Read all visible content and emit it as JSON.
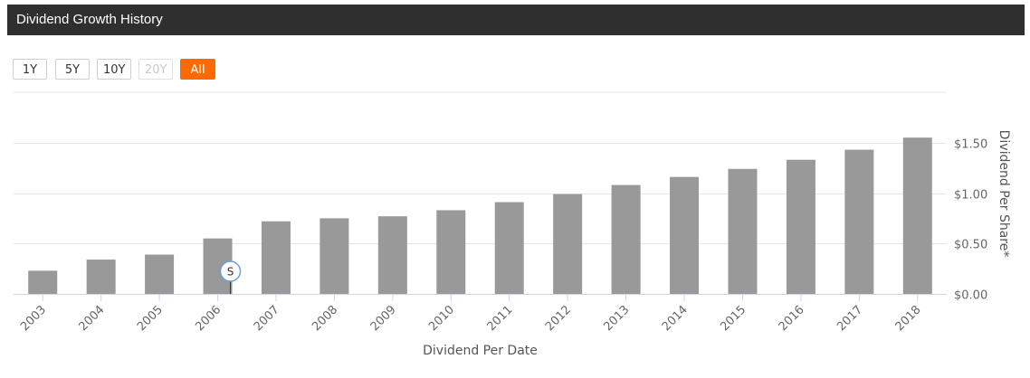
{
  "header": {
    "title": "Dividend Growth History"
  },
  "range_buttons": [
    {
      "label": "1Y",
      "state": "normal"
    },
    {
      "label": "5Y",
      "state": "normal"
    },
    {
      "label": "10Y",
      "state": "normal"
    },
    {
      "label": "20Y",
      "state": "disabled"
    },
    {
      "label": "All",
      "state": "active"
    }
  ],
  "colors": {
    "bar": "#999999",
    "accent": "#ff6a00",
    "header_bg": "#2f2f2f",
    "grid": "#e6e6e6",
    "axis_line": "#ccd6eb"
  },
  "chart_data": {
    "type": "bar",
    "categories": [
      "2003",
      "2004",
      "2005",
      "2006",
      "2007",
      "2008",
      "2009",
      "2010",
      "2011",
      "2012",
      "2013",
      "2014",
      "2015",
      "2016",
      "2017",
      "2018"
    ],
    "values": [
      0.23,
      0.34,
      0.39,
      0.55,
      0.72,
      0.75,
      0.77,
      0.83,
      0.91,
      0.99,
      1.08,
      1.16,
      1.24,
      1.33,
      1.43,
      1.55
    ],
    "xlabel": "Dividend Per Date",
    "ylabel": "Dividend Per Share*",
    "ylim": [
      0,
      2.0
    ],
    "y_ticks": [
      {
        "value": 0,
        "label": "$0.00"
      },
      {
        "value": 0.5,
        "label": "$0.50"
      },
      {
        "value": 1.0,
        "label": "$1.00"
      },
      {
        "value": 1.5,
        "label": "$1.50"
      }
    ],
    "grid": true,
    "flags": [
      {
        "category": "2006",
        "label": "S"
      }
    ]
  }
}
